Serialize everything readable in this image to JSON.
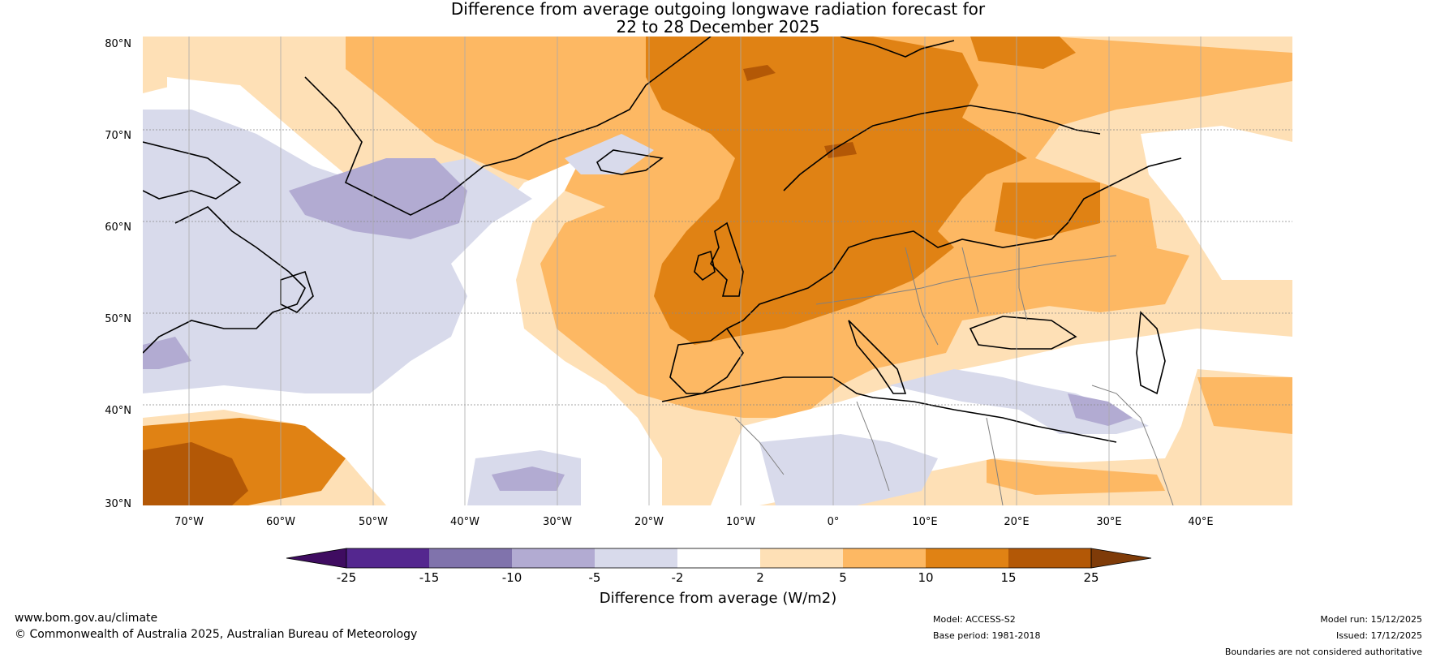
{
  "title": {
    "line1": "Difference from average outgoing longwave radiation forecast for",
    "line2": "22 to 28 December 2025"
  },
  "map": {
    "lat_labels": [
      "80°N",
      "70°N",
      "60°N",
      "50°N",
      "40°N",
      "30°N"
    ],
    "lon_labels": [
      "70°W",
      "60°W",
      "50°W",
      "40°W",
      "30°W",
      "20°W",
      "10°W",
      "0°",
      "10°E",
      "20°E",
      "30°E",
      "40°E"
    ],
    "extent": {
      "lon_min": -75,
      "lon_max": 50,
      "lat_min": 30,
      "lat_max": 81
    }
  },
  "colorbar": {
    "title": "Difference from average (W/m2)",
    "tick_labels": [
      "-25",
      "-15",
      "-10",
      "-5",
      "-2",
      "2",
      "5",
      "10",
      "15",
      "25"
    ],
    "colors": {
      "below_min": "#3f0c61",
      "n25_n15": "#54278f",
      "n15_n10": "#8073ac",
      "n10_n5": "#b2abd2",
      "n5_n2": "#d8daeb",
      "n2_p2": "#ffffff",
      "p2_p5": "#fee0b6",
      "p5_p10": "#fdb863",
      "p10_p15": "#e08214",
      "p15_p25": "#b35806",
      "above_max": "#7f3b08"
    }
  },
  "footer": {
    "website": "www.bom.gov.au/climate",
    "copyright": "© Commonwealth of Australia 2025, Australian Bureau of Meteorology",
    "model": "Model: ACCESS-S2",
    "base_period": "Base period: 1981-2018",
    "model_run": "Model run: 15/12/2025",
    "issued": "Issued: 17/12/2025",
    "boundaries": "Boundaries are not considered authoritative"
  }
}
